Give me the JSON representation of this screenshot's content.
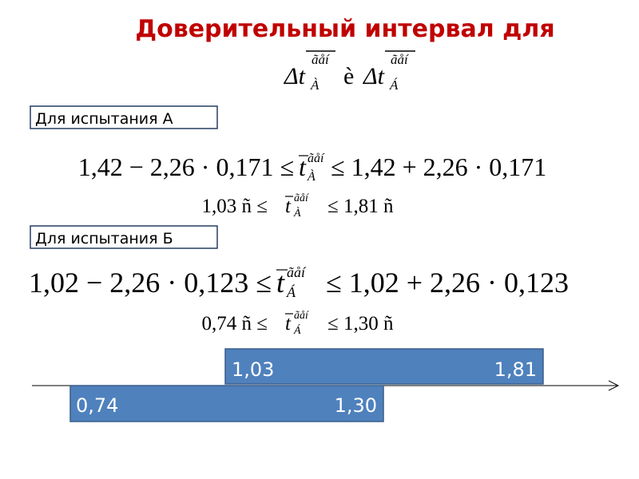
{
  "title": "Доверительный интервал для",
  "heading_formula": {
    "left_var": "Δt",
    "left_sup": "ãåí",
    "left_sub": "À",
    "conj": "è",
    "right_var": "Δt",
    "right_sup": "ãåí",
    "right_sub": "Á"
  },
  "sections": [
    {
      "label": "Для испытания А",
      "inequality": {
        "left": "1,42 − 2,26 · 0,171 ≤",
        "var": "t",
        "sup": "ãåí",
        "sub": "À",
        "right": "≤ 1,42 + 2,26 · 0,171"
      },
      "result": {
        "left": "1,03 ñ ≤",
        "var": "t",
        "sup": "ãåí",
        "sub": "À",
        "right": "≤ 1,81 ñ"
      }
    },
    {
      "label": "Для испытания Б",
      "inequality": {
        "left": "1,02 − 2,26 · 0,123 ≤",
        "var": "t",
        "sup": "ãåí",
        "sub": "Á",
        "right": "≤ 1,02 + 2,26 · 0,123"
      },
      "result": {
        "left": "0,74 ñ ≤",
        "var": "t",
        "sup": "ãåí",
        "sub": "Á",
        "right": "≤ 1,30 ñ"
      }
    }
  ],
  "intervals": [
    {
      "low": "1,03",
      "high": "1,81"
    },
    {
      "low": "0,74",
      "high": "1,30"
    }
  ]
}
